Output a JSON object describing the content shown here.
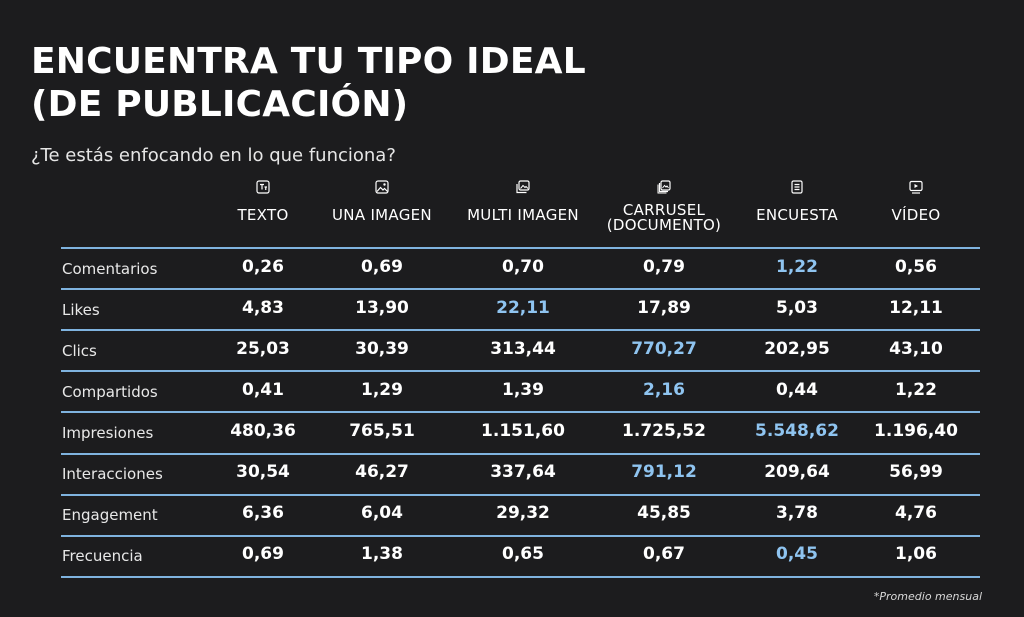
{
  "title_line1": "ENCUENTRA TU TIPO IDEAL",
  "title_line2": "(DE PUBLICACIÓN)",
  "subtitle": "¿Te estás enfocando en lo que funciona?",
  "footnote": "*Promedio mensual",
  "highlight_color": "#8fc4f0",
  "rule_color": "#7fb3df",
  "chart_data": {
    "type": "table",
    "columns": [
      {
        "label": "TEXTO",
        "icon": "text-icon"
      },
      {
        "label": "UNA IMAGEN",
        "icon": "image-icon"
      },
      {
        "label": "MULTI IMAGEN",
        "icon": "multi-image-icon"
      },
      {
        "label": "CARRUSEL\n(DOCUMENTO)",
        "icon": "carousel-icon"
      },
      {
        "label": "ENCUESTA",
        "icon": "poll-icon"
      },
      {
        "label": "VÍDEO",
        "icon": "video-icon"
      }
    ],
    "rows": [
      {
        "label": "Comentarios",
        "values": [
          "0,26",
          "0,69",
          "0,70",
          "0,79",
          "1,22",
          "0,56"
        ],
        "highlight": 4
      },
      {
        "label": "Likes",
        "values": [
          "4,83",
          "13,90",
          "22,11",
          "17,89",
          "5,03",
          "12,11"
        ],
        "highlight": 2
      },
      {
        "label": "Clics",
        "values": [
          "25,03",
          "30,39",
          "313,44",
          "770,27",
          "202,95",
          "43,10"
        ],
        "highlight": 3
      },
      {
        "label": "Compartidos",
        "values": [
          "0,41",
          "1,29",
          "1,39",
          "2,16",
          "0,44",
          "1,22"
        ],
        "highlight": 3
      },
      {
        "label": "Impresiones",
        "values": [
          "480,36",
          "765,51",
          "1.151,60",
          "1.725,52",
          "5.548,62",
          "1.196,40"
        ],
        "highlight": 4
      },
      {
        "label": "Interacciones",
        "values": [
          "30,54",
          "46,27",
          "337,64",
          "791,12",
          "209,64",
          "56,99"
        ],
        "highlight": 3
      },
      {
        "label": "Engagement",
        "values": [
          "6,36",
          "6,04",
          "29,32",
          "45,85",
          "3,78",
          "4,76"
        ],
        "highlight": null
      },
      {
        "label": "Frecuencia",
        "values": [
          "0,69",
          "1,38",
          "0,65",
          "0,67",
          "0,45",
          "1,06"
        ],
        "highlight": 4
      }
    ]
  }
}
